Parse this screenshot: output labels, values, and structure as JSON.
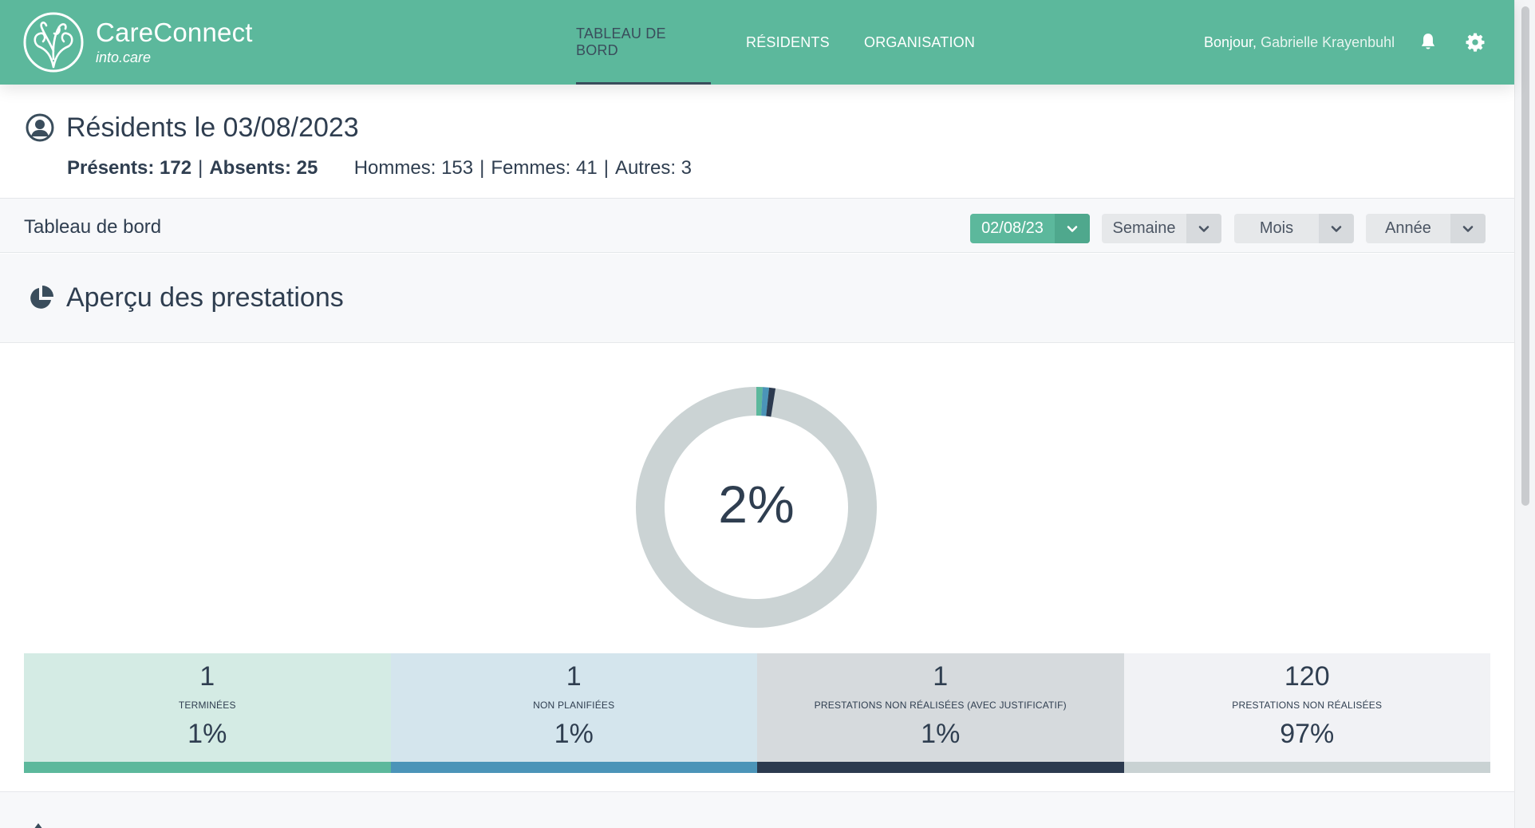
{
  "header": {
    "brand_name": "CareConnect",
    "brand_sub": "into.care",
    "nav": [
      {
        "label": "TABLEAU DE BORD",
        "active": true
      },
      {
        "label": "RÉSIDENTS",
        "active": false
      },
      {
        "label": "ORGANISATION",
        "active": false
      }
    ],
    "greeting": "Bonjour,",
    "user_name": "Gabrielle Krayenbuhl",
    "icons": [
      "logo-icon",
      "bell-icon",
      "gear-icon"
    ]
  },
  "residents": {
    "title": "Résidents le 03/08/2023",
    "present_label": "Présents: 172",
    "absent_label": "Absents: 25",
    "men_label": "Hommes: 153",
    "women_label": "Femmes: 41",
    "others_label": "Autres: 3",
    "separator": "|"
  },
  "toolbar": {
    "title": "Tableau de bord",
    "date_value": "02/08/23",
    "week_label": "Semaine",
    "month_label": "Mois",
    "year_label": "Année"
  },
  "overview": {
    "title": "Aperçu des prestations",
    "donut_percent": "2%",
    "donut_value": 2
  },
  "cards": [
    {
      "count": "1",
      "label": "TERMINÉES",
      "percent": "1%",
      "color": "#5cb89c",
      "bg": "#d4ebe4"
    },
    {
      "count": "1",
      "label": "NON PLANIFIÉES",
      "percent": "1%",
      "color": "#4b94b8",
      "bg": "#d4e5ed"
    },
    {
      "count": "1",
      "label": "PRESTATIONS NON RÉALISÉES (AVEC JUSTIFICATIF)",
      "percent": "1%",
      "color": "#2c3a4f",
      "bg": "#d6dadd"
    },
    {
      "count": "120",
      "label": "PRESTATIONS NON RÉALISÉES",
      "percent": "97%",
      "color": "#c9d2d3",
      "bg": "#f1f2f5"
    }
  ],
  "colors": {
    "accent": "#5cb89c",
    "dark": "#2f3e50",
    "donut_track": "#cbd3d4"
  }
}
